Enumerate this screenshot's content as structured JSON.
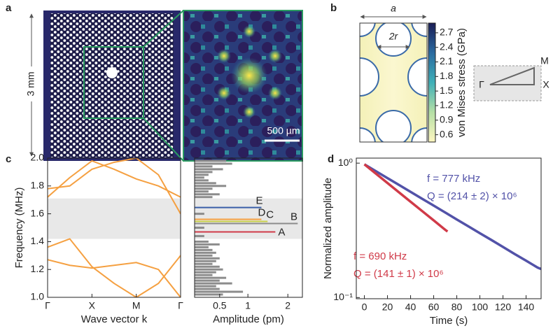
{
  "figure": {
    "panel_labels": [
      "a",
      "b",
      "c",
      "d"
    ],
    "panel_a": {
      "size_label": "3 mm",
      "scale_bar": "500 µm"
    },
    "panel_b": {
      "lattice_constant": "a",
      "diameter": "2r",
      "symmetry_points": [
        "M",
        "Γ",
        "X"
      ]
    }
  },
  "chart_data": [
    {
      "type": "colorbar",
      "label": "von Mises stress (GPa)",
      "ylim": [
        0.45,
        2.9
      ],
      "yticks": [
        0.6,
        0.9,
        1.2,
        1.5,
        1.8,
        2.1,
        2.4,
        2.7
      ],
      "colors": [
        "#fdf6c0",
        "#b5dfa6",
        "#3fb0b8",
        "#2a6aa0",
        "#1a1d55"
      ]
    },
    {
      "type": "line",
      "xlabel": "Wave vector k",
      "ylabel": "Frequency (MHz)",
      "x": [
        0,
        0.5,
        1,
        1.5,
        2,
        2.5,
        3
      ],
      "xlim": [
        0,
        3
      ],
      "xticks": [
        {
          "value": 0,
          "label": "Γ"
        },
        {
          "value": 1,
          "label": "X"
        },
        {
          "value": 2,
          "label": "M"
        },
        {
          "value": 3,
          "label": "Γ"
        }
      ],
      "ylim": [
        1,
        2
      ],
      "yticks": [
        {
          "value": 1,
          "label": "1.0"
        },
        1.2,
        1.4,
        1.6,
        1.8,
        {
          "value": 2,
          "label": "2.0"
        }
      ],
      "band_gap": [
        1.42,
        1.71
      ],
      "series": [
        {
          "color": "#f5a041",
          "values": [
            1.27,
            1.23,
            1.21,
            1.23,
            1.25,
            1.2,
            1.0
          ]
        },
        {
          "color": "#f5a041",
          "values": [
            1.36,
            1.42,
            1.22,
            1.1,
            1.0,
            1.1,
            1.3
          ]
        },
        {
          "color": "#f5a041",
          "values": [
            1.72,
            1.86,
            1.98,
            1.92,
            1.85,
            1.8,
            1.72
          ]
        },
        {
          "color": "#f5a041",
          "values": [
            1.78,
            1.8,
            1.92,
            1.97,
            2.0,
            1.88,
            1.6
          ]
        }
      ]
    },
    {
      "type": "spectrum",
      "xlabel": "Amplitude (pm)",
      "xscale": "sqrt",
      "xlim": [
        0.2,
        2.45
      ],
      "xticks": [
        0.5,
        1,
        2
      ],
      "ylim": [
        1,
        2
      ],
      "band_gap": [
        1.42,
        1.71
      ],
      "color": "#8c8c8c",
      "y": [
        1.02,
        1.04,
        1.06,
        1.08,
        1.1,
        1.12,
        1.14,
        1.16,
        1.18,
        1.2,
        1.22,
        1.24,
        1.26,
        1.28,
        1.3,
        1.32,
        1.34,
        1.36,
        1.38,
        1.4,
        1.44,
        1.5,
        1.6,
        1.72,
        1.74,
        1.76,
        1.78,
        1.8,
        1.82,
        1.84,
        1.86,
        1.88,
        1.9,
        1.92,
        1.94,
        1.96,
        1.98
      ],
      "values": [
        0.55,
        0.9,
        0.5,
        0.45,
        0.7,
        0.5,
        0.6,
        0.4,
        0.45,
        0.55,
        0.5,
        0.4,
        0.45,
        0.5,
        0.4,
        0.45,
        0.4,
        0.35,
        0.5,
        0.35,
        0.3,
        0.3,
        0.3,
        0.4,
        0.5,
        0.35,
        0.4,
        0.6,
        0.45,
        0.35,
        0.3,
        0.35,
        0.4,
        0.55,
        0.4,
        0.7,
        0.6
      ],
      "modes": [
        {
          "label": "A",
          "color": "#d03a48",
          "frequency": 1.47,
          "amplitude": 1.65
        },
        {
          "label": "B",
          "color": "#8c8c8c",
          "frequency": 1.53,
          "amplitude": 2.3
        },
        {
          "label": "C",
          "color": "#c8d04a",
          "frequency": 1.545,
          "amplitude": 1.45
        },
        {
          "label": "D",
          "color": "#f5a041",
          "frequency": 1.56,
          "amplitude": 1.3
        },
        {
          "label": "E",
          "color": "#3a5fa8",
          "frequency": 1.645,
          "amplitude": 1.3
        }
      ]
    },
    {
      "type": "line",
      "log_y": true,
      "xlabel": "Time (s)",
      "ylabel": "Normalized amplitude",
      "xlim": [
        -7,
        153
      ],
      "xticks": [
        0,
        20,
        40,
        60,
        80,
        100,
        120,
        140
      ],
      "ylim": [
        0.098,
        1.09
      ],
      "yticks": [
        {
          "value": 1,
          "label": "10⁰"
        },
        {
          "value": 0.1,
          "label": "10⁻¹"
        }
      ],
      "series": [
        {
          "color": "#5252a8",
          "x": [
            0,
            10,
            20,
            30,
            40,
            50,
            60,
            70,
            80,
            90,
            100,
            110,
            120,
            130,
            140,
            150,
            153
          ],
          "values": [
            0.98,
            0.871,
            0.774,
            0.688,
            0.611,
            0.543,
            0.483,
            0.429,
            0.381,
            0.339,
            0.301,
            0.268,
            0.238,
            0.211,
            0.188,
            0.167,
            0.163
          ],
          "annotations": [
            "f = 777 kHz",
            "Q = (214 ± 2) × 10⁶"
          ]
        },
        {
          "color": "#d03a48",
          "x": [
            0,
            10,
            20,
            30,
            40,
            50,
            60,
            70,
            72
          ],
          "values": [
            0.98,
            0.835,
            0.711,
            0.606,
            0.516,
            0.44,
            0.375,
            0.319,
            0.31
          ],
          "annotations": [
            "f = 690 kHz",
            "Q = (141 ± 1) × 10⁶"
          ]
        }
      ]
    }
  ]
}
